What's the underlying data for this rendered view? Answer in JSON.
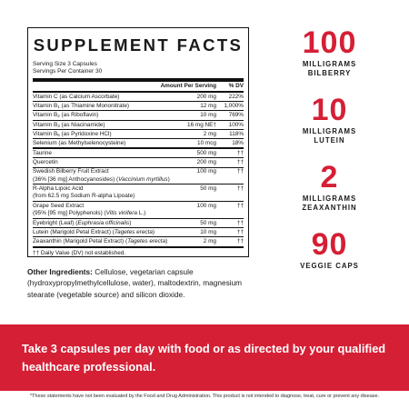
{
  "facts": {
    "title": "SUPPLEMENT FACTS",
    "serving_size": "Serving Size 3 Capsules",
    "servings_per_container": "Servings Per Container 30",
    "col_amount": "Amount Per Serving",
    "col_dv": "% DV",
    "vitamins": [
      {
        "pre": "Vitamin C (as Calcium Ascorbate)",
        "sub": "",
        "post": "",
        "amount": "200 mg",
        "dv": "222%"
      },
      {
        "pre": "Vitamin B",
        "sub": "1",
        "post": " (as Thiamine Mononitrate)",
        "amount": "12 mg",
        "dv": "1,000%"
      },
      {
        "pre": "Vitamin B",
        "sub": "2",
        "post": " (as Riboflavin)",
        "amount": "10 mg",
        "dv": "769%"
      },
      {
        "pre": "Vitamin B",
        "sub": "3",
        "post": " (as Niacinamide)",
        "amount": "16 mg NE†",
        "dv": "100%"
      },
      {
        "pre": "Vitamin B",
        "sub": "6",
        "post": " (as Pyridoxine HCl)",
        "amount": "2 mg",
        "dv": "118%"
      },
      {
        "pre": "Selenium (as Methylselenocysteine)",
        "sub": "",
        "post": "",
        "amount": "10 mcg",
        "dv": "18%"
      }
    ],
    "others": [
      {
        "line1": "Taurine",
        "line1_italic": "",
        "line2": "",
        "line2_italic": "",
        "line2_end": "",
        "amount": "500 mg",
        "dv": "††"
      },
      {
        "line1": "Quercetin",
        "line1_italic": "",
        "line2": "",
        "line2_italic": "",
        "line2_end": "",
        "amount": "200 mg",
        "dv": "††"
      },
      {
        "line1": "Swedish Bilberry Fruit Extract",
        "line1_italic": "",
        "line2": "(36% [36 mg] Anthocyanosides) (",
        "line2_italic": "Vaccinium myrtillus",
        "line2_end": ")",
        "amount": "100 mg",
        "dv": "††"
      },
      {
        "line1": "R-Alpha Lipoic Acid",
        "line1_italic": "",
        "line2": "(from 62.5 mg Sodium R-alpha Lipoate)",
        "line2_italic": "",
        "line2_end": "",
        "amount": "50 mg",
        "dv": "††"
      },
      {
        "line1": "Grape Seed Extract",
        "line1_italic": "",
        "line2": "(95% [95 mg] Polyphenols) (",
        "line2_italic": "Vitis vinifera",
        "line2_end": " L.)",
        "amount": "100 mg",
        "dv": "††"
      },
      {
        "line1": "Eyebright (Leaf) (",
        "line1_italic": "Euphrasia officinalis",
        "line1_end": ")",
        "line2": "",
        "line2_italic": "",
        "line2_end": "",
        "amount": "50 mg",
        "dv": "††"
      },
      {
        "line1": "Lutein (Marigold Petal Extract) (",
        "line1_italic": "Tagetes erecta",
        "line1_end": ")",
        "line2": "",
        "line2_italic": "",
        "line2_end": "",
        "amount": "10 mg",
        "dv": "††"
      },
      {
        "line1": "Zeaxanthin (Marigold Petal Extract) (",
        "line1_italic": "Tagetes erecta",
        "line1_end": ")",
        "line2": "",
        "line2_italic": "",
        "line2_end": "",
        "amount": "2 mg",
        "dv": "††"
      }
    ],
    "footnote": "†† Daily Value (DV) not established."
  },
  "other_ingredients": {
    "label": "Other Ingredients:",
    "text": " Cellulose, vegetarian capsule (hydroxypropylmethylcellulose, water), maltodextrin, magnesium stearate (vegetable source) and silicon dioxide."
  },
  "stats": [
    {
      "number": "100",
      "label_line1": "MILLIGRAMS",
      "label_line2": "BILBERRY"
    },
    {
      "number": "10",
      "label_line1": "MILLIGRAMS",
      "label_line2": "LUTEIN"
    },
    {
      "number": "2",
      "label_line1": "MILLIGRAMS",
      "label_line2": "ZEAXANTHIN"
    },
    {
      "number": "90",
      "label_line1": "VEGGIE CAPS",
      "label_line2": ""
    }
  ],
  "banner": {
    "text": "Take 3 capsules per day with food or as directed by your qualified healthcare professional."
  },
  "disclaimer": "*These statements have not been evaluated by the Food and Drug Administration. This product is not intended to diagnose, treat, cure or prevent any disease.",
  "colors": {
    "accent": "#d51f35",
    "text": "#1a1a1a",
    "background": "#ffffff"
  }
}
